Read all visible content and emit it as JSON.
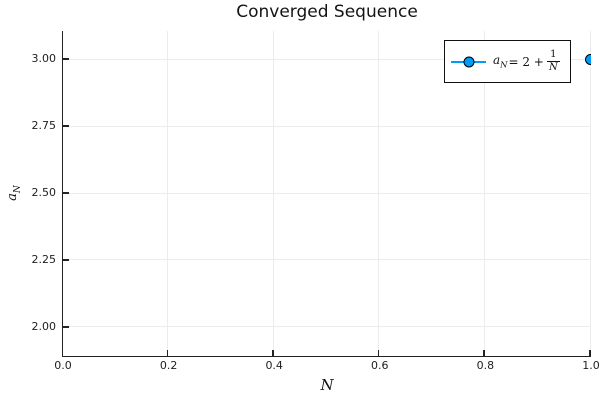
{
  "chart_data": {
    "type": "scatter",
    "title": "Converged Sequence",
    "xlabel": "N",
    "ylabel": {
      "base": "a",
      "sub": "N"
    },
    "xlim": [
      0.0,
      1.0
    ],
    "ylim": [
      1.895,
      3.105
    ],
    "xticks": {
      "labels": [
        "0.0",
        "0.2",
        "0.4",
        "0.6",
        "0.8",
        "1.0"
      ],
      "values": [
        0.0,
        0.2,
        0.4,
        0.6,
        0.8,
        1.0
      ]
    },
    "yticks": {
      "labels": [
        "2.00",
        "2.25",
        "2.50",
        "2.75",
        "3.00"
      ],
      "values": [
        2.0,
        2.25,
        2.5,
        2.75,
        3.0
      ]
    },
    "grid": true,
    "legend": {
      "position": "top-right",
      "entry": {
        "name": "a_N = 2 + 1/N",
        "lhs_base": "a",
        "lhs_sub": "N",
        "mid": "= 2 +",
        "frac_num": "1",
        "frac_den": "N"
      }
    },
    "series": [
      {
        "name": "a_N = 2 + 1/N",
        "x": [
          1.0
        ],
        "y": [
          3.0
        ],
        "marker": "circle",
        "color": "#009AF9",
        "marker_stroke": "#000000"
      }
    ]
  },
  "colors": {
    "series_blue": "#009AF9",
    "grid": "#ECECEC",
    "axis": "#222222",
    "background": "#FFFFFF",
    "legend_border": "#111111",
    "text": "#141414"
  }
}
